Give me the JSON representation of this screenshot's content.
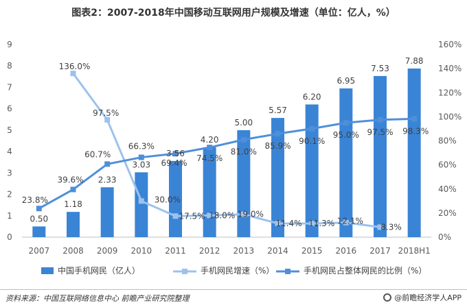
{
  "title": "图表2：2007-2018年中国移动互联网用户规模及增速（单位：亿人，%）",
  "footer": {
    "source": "资料来源：中国互联网络信息中心  前瞻产业研究院整理",
    "brand": "@前瞻经济学人APP"
  },
  "colors": {
    "bar": "#3a84d6",
    "growth_line": "#9cc2ee",
    "share_line": "#4f8fd9"
  },
  "chart_data": {
    "type": "bar",
    "title": "图表2：2007-2018年中国移动互联网用户规模及增速（单位：亿人，%）",
    "categories": [
      "2007",
      "2008",
      "2009",
      "2010",
      "2011",
      "2012",
      "2013",
      "2014",
      "2015",
      "2016",
      "2017",
      "2018H1"
    ],
    "y_left": {
      "min": 0,
      "max": 9,
      "ticks": [
        0,
        1,
        2,
        3,
        4,
        5,
        6,
        7,
        8,
        9
      ]
    },
    "y_right": {
      "min": 0,
      "max": 160,
      "ticks": [
        "0%",
        "20%",
        "40%",
        "60%",
        "80%",
        "100%",
        "120%",
        "140%",
        "160%"
      ]
    },
    "series": [
      {
        "name": "中国手机网民（亿人）",
        "type": "bar",
        "axis": "left",
        "values": [
          0.5,
          1.18,
          2.33,
          3.03,
          3.56,
          4.2,
          5.0,
          5.57,
          6.2,
          6.95,
          7.53,
          7.88
        ],
        "labels": [
          "0.50",
          "1.18",
          "2.33",
          "3.03",
          "3.56",
          "4.20",
          "5.00",
          "5.57",
          "6.20",
          "6.95",
          "7.53",
          "7.88"
        ]
      },
      {
        "name": "手机网民增速（%）",
        "type": "line",
        "axis": "right",
        "values": [
          null,
          136.0,
          97.5,
          30.0,
          17.5,
          18.0,
          19.0,
          11.4,
          11.3,
          12.1,
          8.3,
          null
        ],
        "labels": [
          null,
          "136.0%",
          "97.5%",
          "30.0%",
          "17.5%",
          "18.0%",
          "19.0%",
          "11.4%",
          "11.3%",
          "12.1%",
          "8.3%",
          null
        ]
      },
      {
        "name": "手机网民占整体网民的比例（%）",
        "type": "line",
        "axis": "right",
        "values": [
          23.8,
          39.6,
          60.7,
          66.3,
          69.4,
          74.5,
          81.0,
          85.9,
          90.1,
          95.0,
          97.5,
          98.3
        ],
        "labels": [
          "23.8%",
          "39.6%",
          "60.7%",
          "66.3%",
          "69.4%",
          "74.5%",
          "81.0%",
          "85.9%",
          "90.1%",
          "95.0%",
          "97.5%",
          "98.3%"
        ]
      }
    ],
    "legend": "bottom",
    "grid": false
  }
}
